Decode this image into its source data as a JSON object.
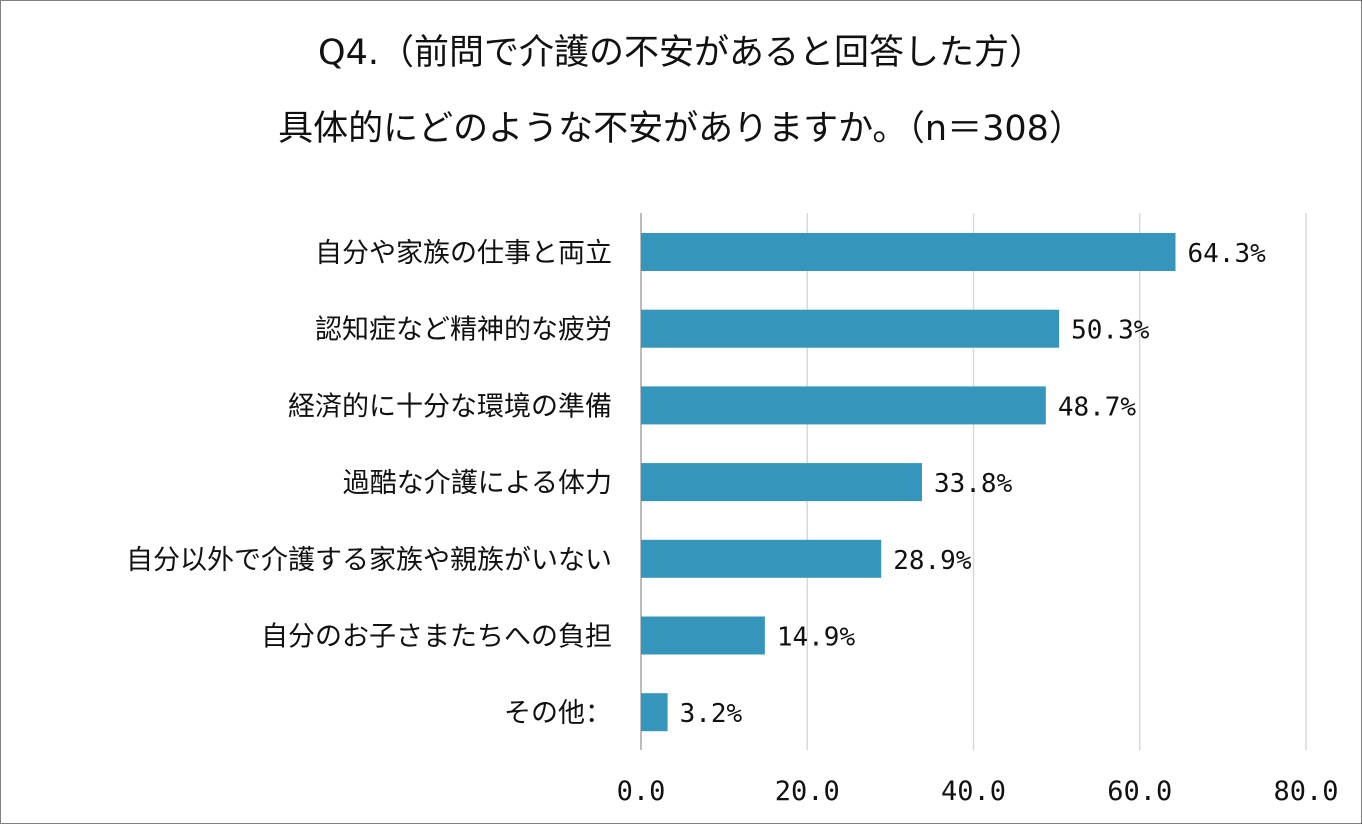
{
  "chart_data": {
    "type": "bar",
    "orientation": "horizontal",
    "title_line1": "Q4.（前問で介護の不安があると回答した方）",
    "title_line2": "具体的にどのような不安がありますか。（n＝308）",
    "categories": [
      "自分や家族の仕事と両立",
      "認知症など精神的な疲労",
      "経済的に十分な環境の準備",
      "過酷な介護による体力",
      "自分以外で介護する家族や親族がいない",
      "自分のお子さまたちへの負担",
      "その他："
    ],
    "values": [
      64.3,
      50.3,
      48.7,
      33.8,
      28.9,
      14.9,
      3.2
    ],
    "value_labels": [
      "64.3%",
      "50.3%",
      "48.7%",
      "33.8%",
      "28.9%",
      "14.9%",
      "3.2%"
    ],
    "xlim": [
      0,
      80
    ],
    "xticks": [
      0,
      20,
      40,
      60,
      80
    ],
    "xtick_labels": [
      "0.0",
      "20.0",
      "40.0",
      "60.0",
      "80.0"
    ],
    "bar_color": "#3595bb",
    "grid": true,
    "legend": "none"
  }
}
